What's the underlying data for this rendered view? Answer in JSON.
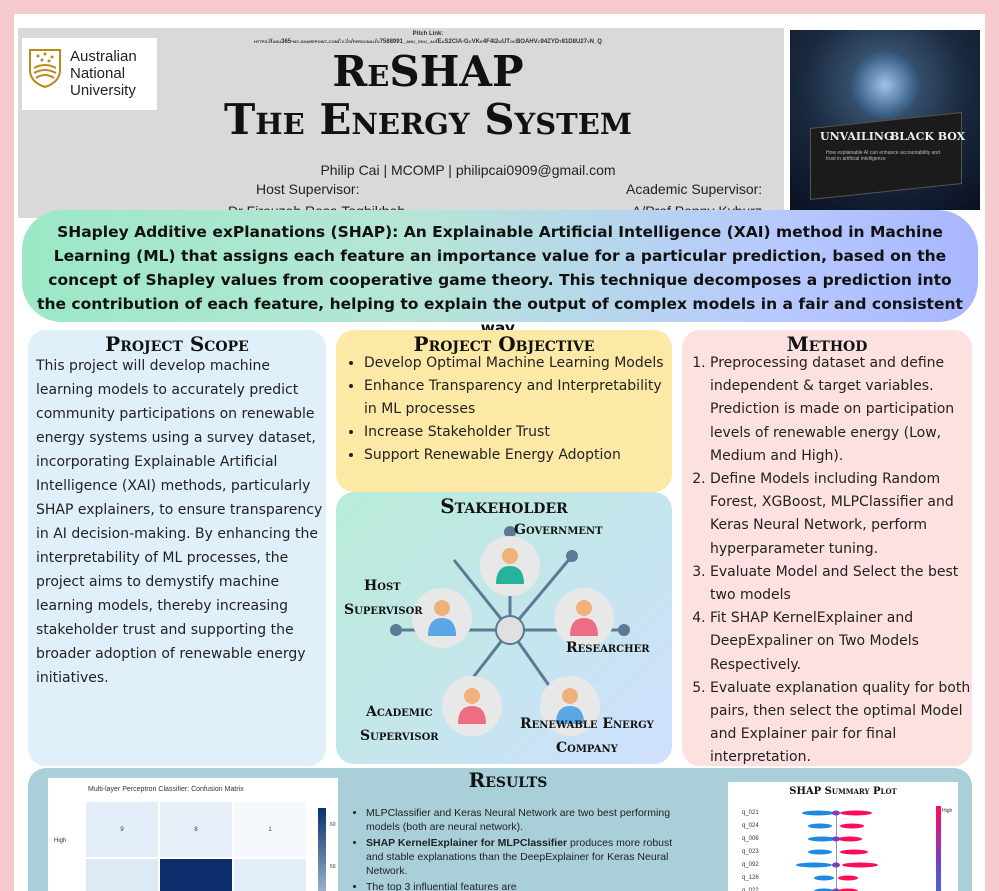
{
  "header": {
    "logo_text": [
      "Australian",
      "National",
      "University"
    ],
    "pitch_label": "Pitch Link:",
    "pitch_url": "https://anu365-my.sharepoint.com/:v:/g/personal/u7588991_anu_edu_au/EaS2CIA-GcVKk4F4I2wUTocBOAHVc94ZYDt81D8U27vN_Q",
    "title_line1": "ReSHAP",
    "title_line2": "The Energy System",
    "author_line": "Philip Cai | MCOMP | philipcai0909@gmail.com",
    "host_label": "Host Supervisor:",
    "host_name": "Dr Firouzeh Rosa Taghikhah",
    "academic_label": "Academic Supervisor:",
    "academic_name": "A/Prof Penny Kyburz",
    "image_text1": "UNVAILING",
    "image_text2": "BLACK BOX",
    "image_subtext": "How explainable AI can enhance accountability and trust in artificial intelligence"
  },
  "banner": {
    "text": "SHapley Additive exPlanations (SHAP): An Explainable Artificial Intelligence (XAI) method in Machine Learning (ML) that assigns each feature an importance value for a particular prediction, based on the concept of Shapley values from cooperative game theory. This technique decomposes a prediction into the contribution of each feature, helping to explain the output of complex models in a fair and consistent way."
  },
  "scope": {
    "heading": "Project Scope",
    "text": "This project will develop machine learning models to accurately predict community participations on renewable energy systems using a survey dataset, incorporating Explainable Artificial Intelligence (XAI) methods, particularly SHAP explainers, to ensure transparency in AI decision-making. By enhancing the interpretability of ML  processes, the project aims to demystify machine learning models, thereby increasing stakeholder trust and supporting the broader adoption of renewable energy initiatives."
  },
  "objective": {
    "heading": "Project Objective",
    "items": [
      "Develop Optimal Machine Learning Models",
      "Enhance Transparency and Interpretability in ML processes",
      "Increase Stakeholder Trust",
      "Support Renewable Energy Adoption"
    ]
  },
  "stakeholder": {
    "heading": "Stakeholder",
    "labels": {
      "government": "Government",
      "host_1": "Host",
      "host_2": "Supervisor",
      "researcher": "Researcher",
      "academic_1": "Academic",
      "academic_2": "Supervisor",
      "company_1": "Renewable Energy",
      "company_2": "Company"
    },
    "colors": {
      "green": "#27b39a",
      "blue": "#5aa6e6",
      "pink": "#ef6c85",
      "skin": "#f0b27a",
      "hub": "#5b7a93"
    }
  },
  "method": {
    "heading": "Method",
    "steps": [
      "Preprocessing dataset and define independent & target variables. Prediction is made on participation levels of renewable energy (Low, Medium and High).",
      "Define Models including Random Forest, XGBoost, MLPClassifier and Keras Neural Network, perform hyperparameter tuning.",
      "Evaluate Model and Select the best two models",
      "Fit SHAP KernelExplainer and DeepExpaliner on Two Models Respectively.",
      "Evaluate explanation quality for both pairs, then select the optimal Model and Explainer pair for final interpretation."
    ]
  },
  "results": {
    "heading": "Results",
    "cm_title": "Multi-layer Perceptron Classifier: Confusion Matrix",
    "cm_row_label": "High",
    "cm_row2_label": "≡",
    "cm_values": [
      "9",
      "8",
      "1"
    ],
    "cm_ticks": [
      "60",
      "50",
      "40"
    ],
    "bullets": [
      {
        "text": "MLPClassifier and Keras Neural Network are two best performing models (both are neural network).",
        "bold": ""
      },
      {
        "bold": "SHAP KernelExplainer for MLPClassifier",
        "text": " produces more robust and stable explanations than the DeepExplainer for Keras Neural Network."
      },
      {
        "text": "The top 3 influential features are",
        "bold": ""
      }
    ],
    "shap_title": "SHAP Summary Plot",
    "shap_high": "High",
    "shap_features": [
      "q_021",
      "q_024",
      "q_006",
      "q_023",
      "q_092",
      "q_126",
      "q_022"
    ]
  }
}
